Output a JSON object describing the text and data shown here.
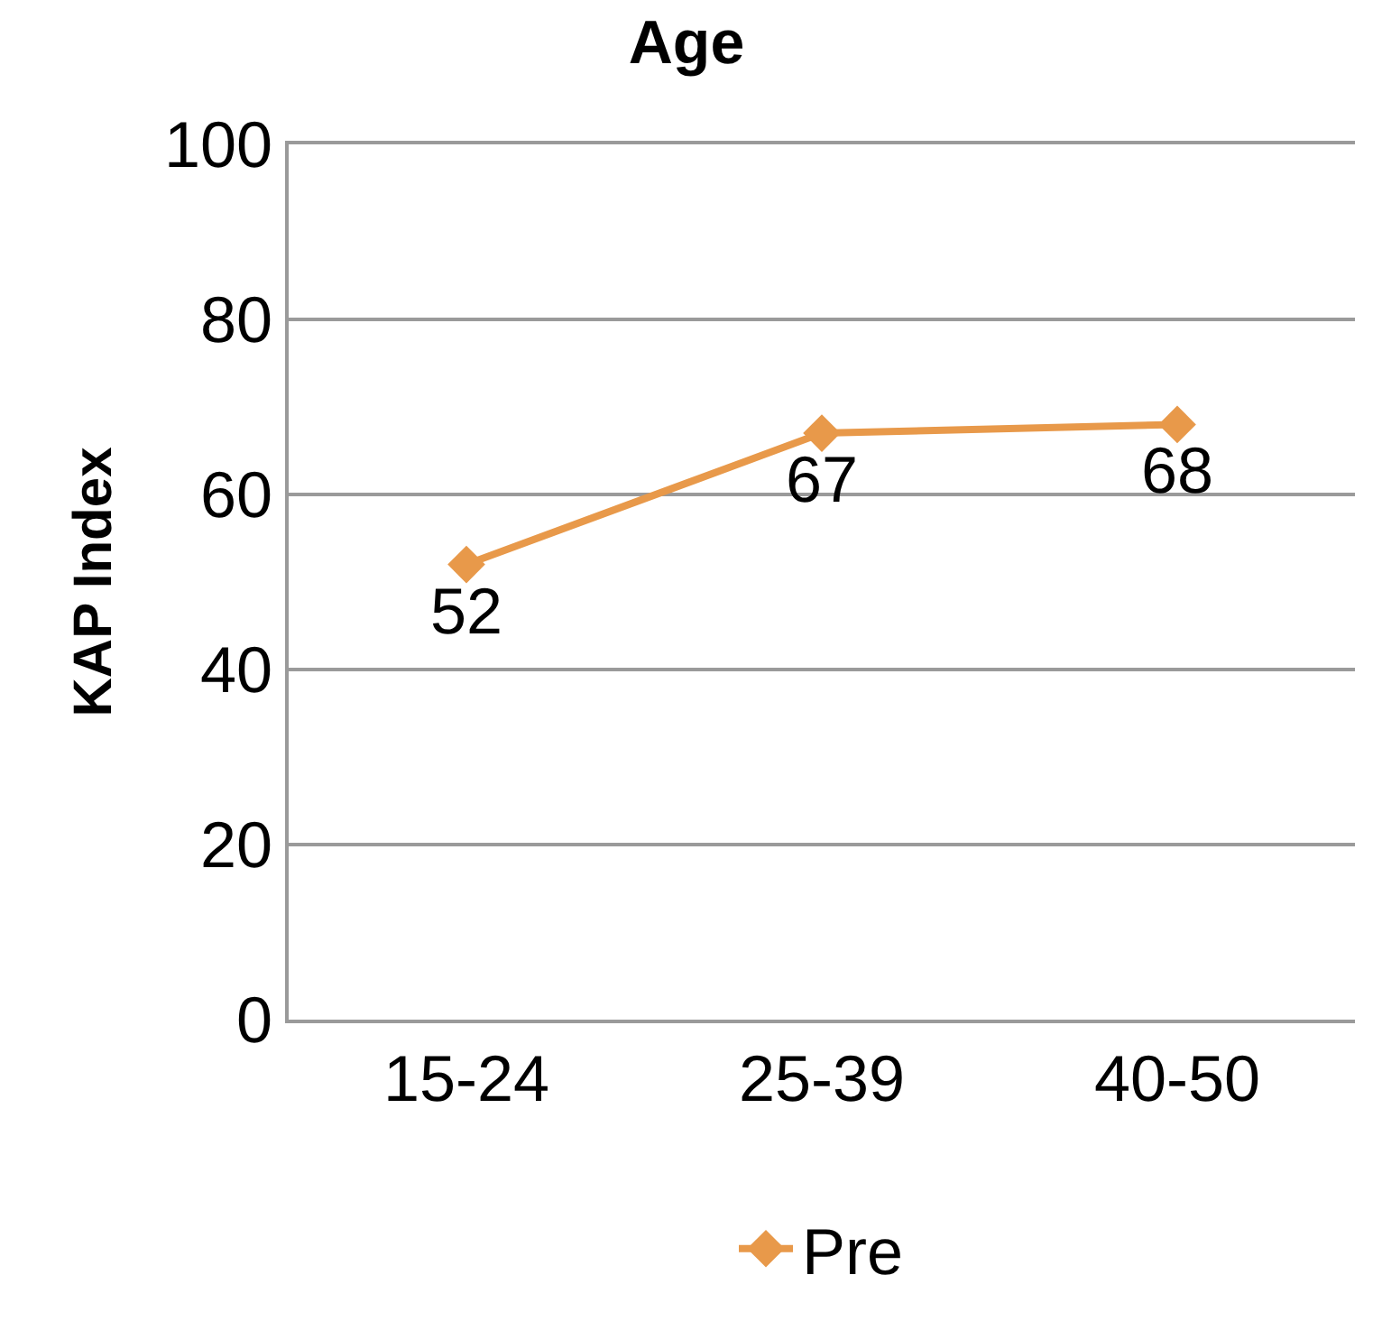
{
  "chart_data": {
    "type": "line",
    "title": "Age",
    "ylabel": "KAP Index",
    "categories": [
      "15-24",
      "25-39",
      "40-50"
    ],
    "series": [
      {
        "name": "Pre",
        "color": "#e8994a",
        "values": [
          52,
          67,
          68
        ]
      }
    ],
    "ylim": [
      0,
      100
    ],
    "yticks": [
      0,
      20,
      40,
      60,
      80,
      100
    ],
    "grid": "y",
    "legend": "bottom",
    "marker": "diamond",
    "data_labels": true
  }
}
